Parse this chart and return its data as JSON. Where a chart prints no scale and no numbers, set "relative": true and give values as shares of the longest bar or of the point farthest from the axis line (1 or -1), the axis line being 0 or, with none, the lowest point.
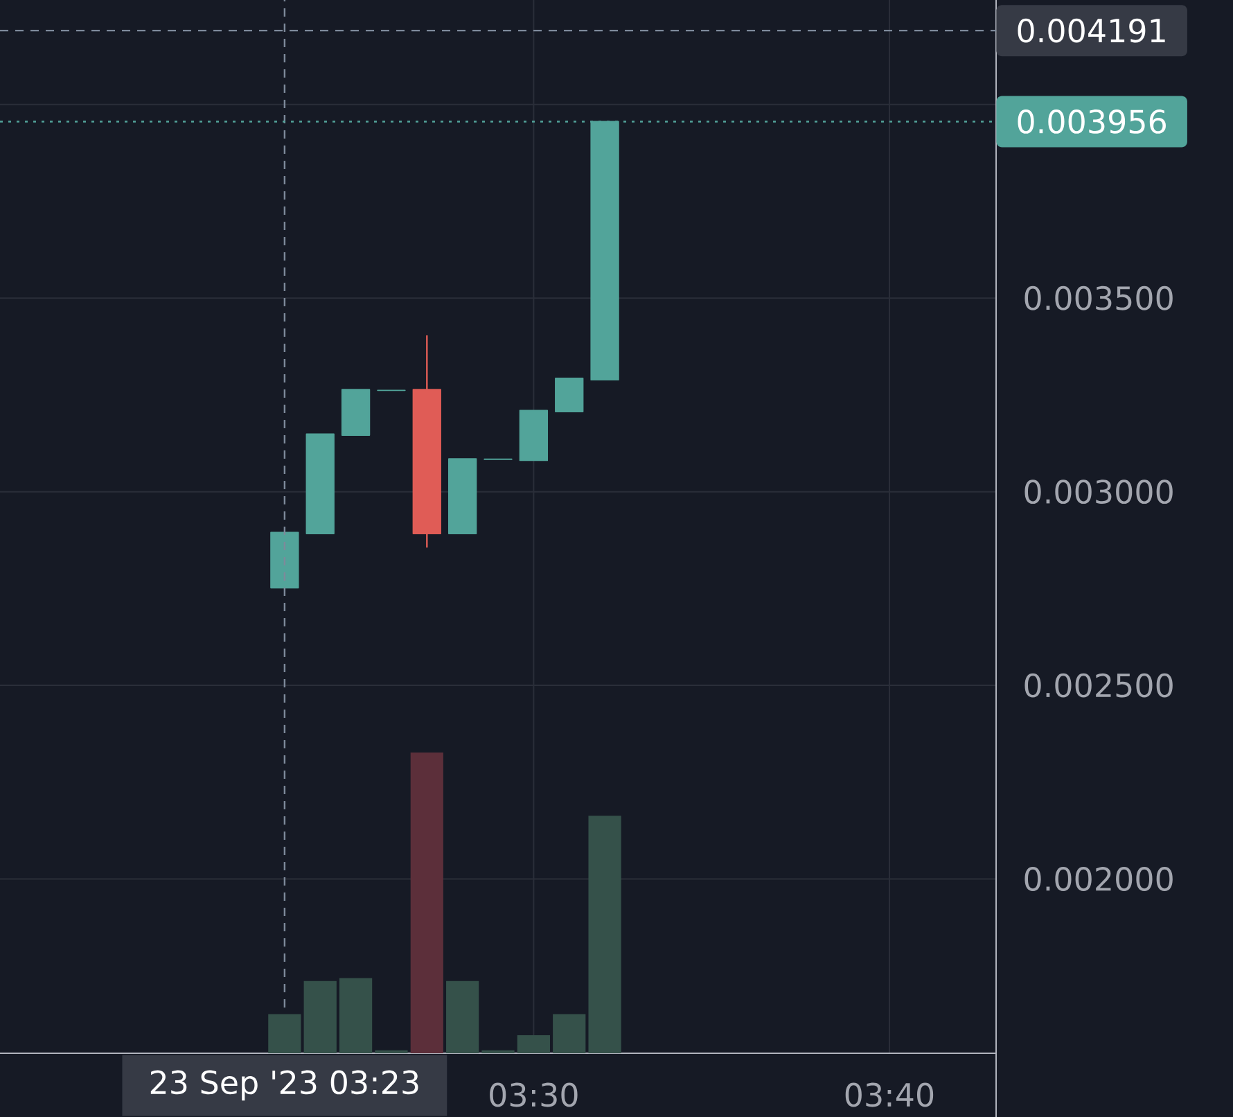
{
  "chart_data": [
    {
      "type": "candlestick",
      "x": [
        "2023-09-23T03:23",
        "2023-09-23T03:24",
        "2023-09-23T03:25",
        "2023-09-23T03:26",
        "2023-09-23T03:27",
        "2023-09-23T03:28",
        "2023-09-23T03:29",
        "2023-09-23T03:30",
        "2023-09-23T03:31",
        "2023-09-23T03:32"
      ],
      "ohlc": [
        [
          0.002752,
          0.002895,
          0.002752,
          0.002895
        ],
        [
          0.002892,
          0.003149,
          0.002892,
          0.003149
        ],
        [
          0.003146,
          0.003264,
          0.003146,
          0.003264
        ],
        [
          0.003262,
          0.003262,
          0.003262,
          0.003262
        ],
        [
          0.003264,
          0.003404,
          0.002856,
          0.002892
        ],
        [
          0.002892,
          0.003085,
          0.002892,
          0.003085
        ],
        [
          0.003084,
          0.003084,
          0.003084,
          0.003084
        ],
        [
          0.003081,
          0.00321,
          0.003081,
          0.00321
        ],
        [
          0.003207,
          0.003293,
          0.003207,
          0.003293
        ],
        [
          0.003289,
          0.003956,
          0.003289,
          0.003956
        ]
      ],
      "colors": [
        "#52a49a",
        "#52a49a",
        "#52a49a",
        "#52a49a",
        "#e05c56",
        "#52a49a",
        "#52a49a",
        "#52a49a",
        "#52a49a",
        "#52a49a"
      ],
      "xlim": [
        "2023-09-23T03:15",
        "2023-09-23T03:43"
      ],
      "xticks": [
        {
          "value": "2023-09-23T03:30",
          "label": "03:30"
        },
        {
          "value": "2023-09-23T03:40",
          "label": "03:40"
        }
      ],
      "ylim": [
        0.00155,
        0.00427
      ],
      "yticks": [
        {
          "value": 0.002,
          "label": "0.002000"
        },
        {
          "value": 0.0025,
          "label": "0.002500"
        },
        {
          "value": 0.003,
          "label": "0.003000"
        },
        {
          "value": 0.0035,
          "label": "0.003500"
        },
        {
          "value": 0.004,
          "label": null
        }
      ],
      "grid": true,
      "ref_lines": [
        {
          "axis": "x",
          "value": "2023-09-23T03:23",
          "label": "23 Sep '23 03:23",
          "line_style": "dashed",
          "color": "#7e8a9b"
        },
        {
          "axis": "y",
          "value": 0.004191,
          "label": "0.004191",
          "line_style": "dashed",
          "color": "#7e8a9b"
        },
        {
          "axis": "y",
          "value": 0.003956,
          "label": "0.003956",
          "line_style": "dotted",
          "color": "#52a49a"
        }
      ]
    },
    {
      "type": "bar",
      "relative": true,
      "x": [
        "2023-09-23T03:23",
        "2023-09-23T03:24",
        "2023-09-23T03:25",
        "2023-09-23T03:26",
        "2023-09-23T03:27",
        "2023-09-23T03:28",
        "2023-09-23T03:29",
        "2023-09-23T03:30",
        "2023-09-23T03:31",
        "2023-09-23T03:32"
      ],
      "values": [
        0.13,
        0.24,
        0.25,
        0.01,
        1,
        0.24,
        0.01,
        0.06,
        0.13,
        0.79
      ],
      "colors": [
        "#35514a",
        "#35514a",
        "#35514a",
        "#35514a",
        "#5c2f3a",
        "#35514a",
        "#35514a",
        "#35514a",
        "#35514a",
        "#35514a"
      ],
      "xlim": [
        "2023-09-23T03:15",
        "2023-09-23T03:43"
      ]
    }
  ]
}
